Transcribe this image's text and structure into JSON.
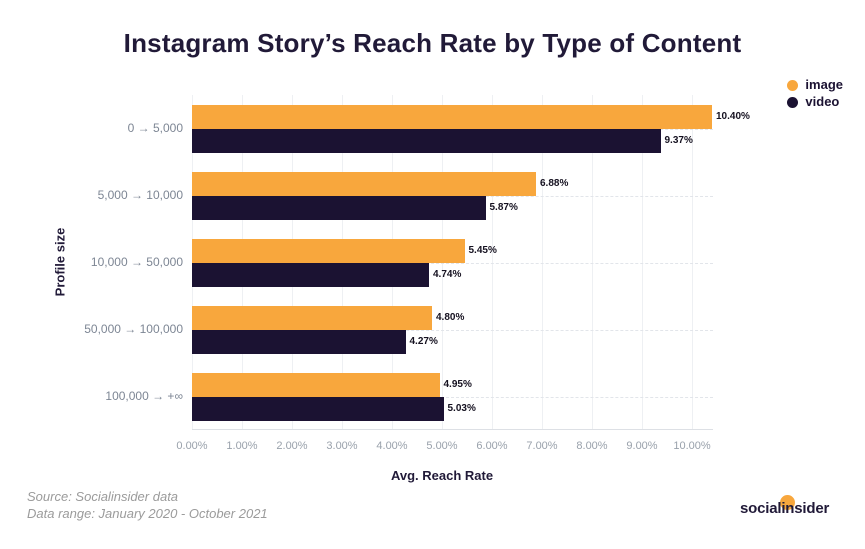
{
  "page": {
    "background": "#ffffff"
  },
  "header": {
    "title": "Instagram Story’s Reach Rate by Type of Content"
  },
  "legend": {
    "items": [
      {
        "label": "image",
        "color": "#f8a73d"
      },
      {
        "label": "video",
        "color": "#1b1232"
      }
    ]
  },
  "chart_data": {
    "type": "bar",
    "orientation": "horizontal",
    "title": "Instagram Story’s Reach Rate by Type of Content",
    "categories": [
      "0 → 5,000",
      "5,000 → 10,000",
      "10,000 → 50,000",
      "50,000 → 100,000",
      "100,000 → +∞"
    ],
    "series": [
      {
        "name": "image",
        "color": "#f8a73d",
        "values": [
          10.4,
          6.88,
          5.45,
          4.8,
          4.95
        ],
        "labels": [
          "10.40%",
          "6.88%",
          "5.45%",
          "4.80%",
          "4.95%"
        ]
      },
      {
        "name": "video",
        "color": "#1b1232",
        "values": [
          9.37,
          5.87,
          4.74,
          4.27,
          5.03
        ],
        "labels": [
          "9.37%",
          "5.87%",
          "4.74%",
          "4.27%",
          "5.03%"
        ]
      }
    ],
    "xlabel": "Avg. Reach Rate",
    "ylabel": "Profile size",
    "xlim": [
      0,
      10.42
    ],
    "x_ticks": [
      "0.00%",
      "1.00%",
      "2.00%",
      "3.00%",
      "4.00%",
      "5.00%",
      "6.00%",
      "7.00%",
      "8.00%",
      "9.00%",
      "10.00%"
    ],
    "grid": true,
    "legend_position": "top-right"
  },
  "footer": {
    "source_line1": "Source: Socialinsider data",
    "source_line2": "Data range: January 2020 - October 2021",
    "logo_left": "social",
    "logo_right": "insider"
  }
}
